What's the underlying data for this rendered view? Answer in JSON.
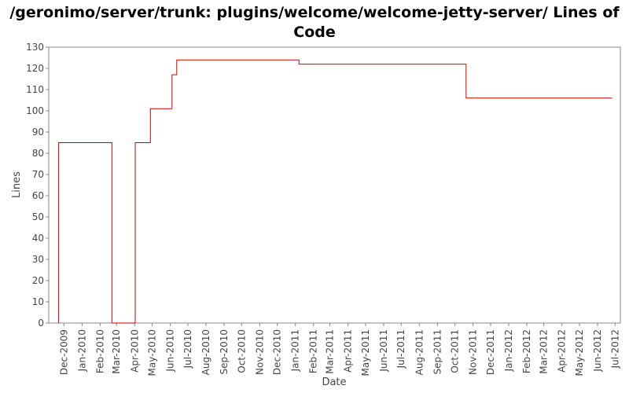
{
  "chart_data": {
    "type": "line",
    "step": true,
    "title_lines": [
      "/geronimo/server/trunk: plugins/welcome/welcome-jetty-server/ Lines of",
      "Code"
    ],
    "xlabel": "Date",
    "ylabel": "Lines",
    "ylim": [
      0,
      130
    ],
    "yticks": [
      0,
      10,
      20,
      30,
      40,
      50,
      60,
      70,
      80,
      90,
      100,
      110,
      120,
      130
    ],
    "xlim": [
      "2009-11-05",
      "2012-07-10"
    ],
    "xticks": [
      {
        "date": "2009-12-01",
        "label": "Dec-2009"
      },
      {
        "date": "2010-01-01",
        "label": "Jan-2010"
      },
      {
        "date": "2010-02-01",
        "label": "Feb-2010"
      },
      {
        "date": "2010-03-01",
        "label": "Mar-2010"
      },
      {
        "date": "2010-04-01",
        "label": "Apr-2010"
      },
      {
        "date": "2010-05-01",
        "label": "May-2010"
      },
      {
        "date": "2010-06-01",
        "label": "Jun-2010"
      },
      {
        "date": "2010-07-01",
        "label": "Jul-2010"
      },
      {
        "date": "2010-08-01",
        "label": "Aug-2010"
      },
      {
        "date": "2010-09-01",
        "label": "Sep-2010"
      },
      {
        "date": "2010-10-01",
        "label": "Oct-2010"
      },
      {
        "date": "2010-11-01",
        "label": "Nov-2010"
      },
      {
        "date": "2010-12-01",
        "label": "Dec-2010"
      },
      {
        "date": "2011-01-01",
        "label": "Jan-2011"
      },
      {
        "date": "2011-02-01",
        "label": "Feb-2011"
      },
      {
        "date": "2011-03-01",
        "label": "Mar-2011"
      },
      {
        "date": "2011-04-01",
        "label": "Apr-2011"
      },
      {
        "date": "2011-05-01",
        "label": "May-2011"
      },
      {
        "date": "2011-06-01",
        "label": "Jun-2011"
      },
      {
        "date": "2011-07-01",
        "label": "Jul-2011"
      },
      {
        "date": "2011-08-01",
        "label": "Aug-2011"
      },
      {
        "date": "2011-09-01",
        "label": "Sep-2011"
      },
      {
        "date": "2011-10-01",
        "label": "Oct-2011"
      },
      {
        "date": "2011-11-01",
        "label": "Nov-2011"
      },
      {
        "date": "2011-12-01",
        "label": "Dec-2011"
      },
      {
        "date": "2012-01-01",
        "label": "Jan-2012"
      },
      {
        "date": "2012-02-01",
        "label": "Feb-2012"
      },
      {
        "date": "2012-03-01",
        "label": "Mar-2012"
      },
      {
        "date": "2012-04-01",
        "label": "Apr-2012"
      },
      {
        "date": "2012-05-01",
        "label": "May-2012"
      },
      {
        "date": "2012-06-01",
        "label": "Jun-2012"
      },
      {
        "date": "2012-07-01",
        "label": "Jul-2012"
      }
    ],
    "series": [
      {
        "color": "#cc0000",
        "points": [
          {
            "x": "2009-11-22",
            "y": 0
          },
          {
            "x": "2009-11-22",
            "y": 85
          },
          {
            "x": "2010-02-21",
            "y": 85
          },
          {
            "x": "2010-02-21",
            "y": 0
          },
          {
            "x": "2010-04-02",
            "y": 0
          },
          {
            "x": "2010-04-02",
            "y": 85
          },
          {
            "x": "2010-04-28",
            "y": 85
          },
          {
            "x": "2010-04-28",
            "y": 101
          },
          {
            "x": "2010-06-04",
            "y": 101
          },
          {
            "x": "2010-06-04",
            "y": 117
          },
          {
            "x": "2010-06-12",
            "y": 117
          },
          {
            "x": "2010-06-12",
            "y": 124
          },
          {
            "x": "2011-01-07",
            "y": 124
          },
          {
            "x": "2011-01-07",
            "y": 122
          },
          {
            "x": "2011-10-20",
            "y": 122
          },
          {
            "x": "2011-10-20",
            "y": 106
          },
          {
            "x": "2012-06-26",
            "y": 106
          }
        ]
      }
    ],
    "grid": false
  }
}
